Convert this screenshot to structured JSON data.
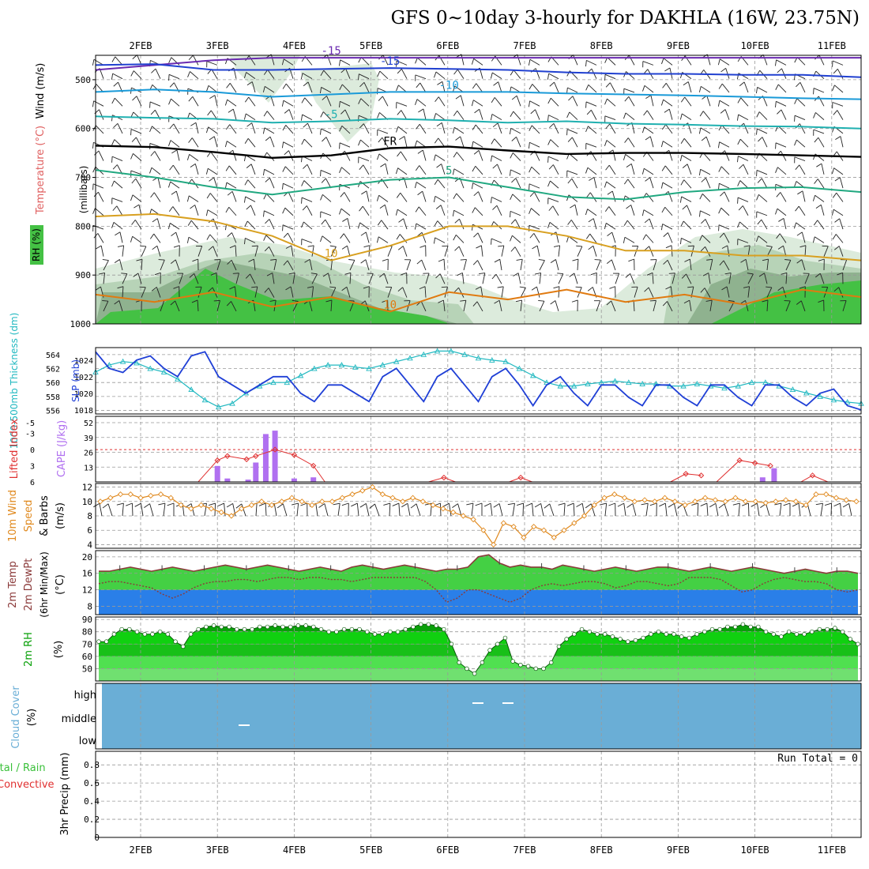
{
  "header": {
    "title": "GFS 0~10day 3-hourly for DAKHLA (16W, 23.75N)"
  },
  "dates": [
    "2FEB",
    "3FEB",
    "4FEB",
    "5FEB",
    "6FEB",
    "7FEB",
    "8FEB",
    "9FEB",
    "10FEB",
    "11FEB"
  ],
  "colors": {
    "wind_barb": "#222222",
    "rh_light": "#dcebdc",
    "rh_mid": "#b7d3b7",
    "rh_dark": "#8fb28f",
    "rh_green": "#44c144",
    "slp": "#1f3fd6",
    "thickness": "#20b8c0",
    "lifted": "#e03030",
    "cape": "#b070f0",
    "wind_speed": "#e08a20",
    "temp_fill": "#44d044",
    "dewpt_fill": "#2a7fe8",
    "temp_line": "#8b3a3a",
    "rh2m": "#08a008",
    "cloud": "#6aaed6"
  },
  "chart_data": [
    {
      "type": "heatmap",
      "name": "upper-air",
      "ylabel_parts": {
        "rh": "RH (%)",
        "temp": "Temperature (°C)",
        "wind": "Wind (m/s)",
        "units": "(millibars)"
      },
      "y_ticks": [
        500,
        600,
        700,
        800,
        900,
        1000
      ],
      "ylim": [
        450,
        1000
      ],
      "isotherms": [
        {
          "label": "-15",
          "color": "#6a2ab0",
          "values": [
            480,
            470,
            460,
            455,
            455,
            455,
            455,
            455,
            455,
            455,
            455,
            455,
            455,
            455
          ]
        },
        {
          "label": "-15",
          "color": "#2040d0",
          "values": [
            470,
            468,
            480,
            480,
            478,
            476,
            478,
            480,
            485,
            488,
            488,
            490,
            490,
            495
          ]
        },
        {
          "label": "-10",
          "color": "#1a9ad8",
          "values": [
            525,
            520,
            525,
            535,
            530,
            525,
            525,
            525,
            528,
            530,
            532,
            535,
            538,
            540
          ]
        },
        {
          "label": "-5",
          "color": "#20b0b0",
          "values": [
            575,
            578,
            580,
            588,
            585,
            580,
            583,
            588,
            585,
            590,
            592,
            595,
            596,
            600
          ]
        },
        {
          "label": "FR",
          "color": "#000000",
          "values": [
            635,
            638,
            648,
            660,
            655,
            640,
            637,
            645,
            652,
            650,
            650,
            652,
            655,
            658
          ]
        },
        {
          "label": "5",
          "color": "#20a880",
          "values": [
            685,
            700,
            720,
            735,
            720,
            705,
            700,
            720,
            740,
            745,
            730,
            722,
            720,
            730
          ]
        },
        {
          "label": "10",
          "color": "#d8a020",
          "values": [
            780,
            775,
            790,
            820,
            870,
            840,
            800,
            800,
            820,
            850,
            850,
            860,
            860,
            870
          ]
        },
        {
          "label": "10",
          "color": "#e07a10",
          "values": [
            940,
            955,
            935,
            965,
            945,
            975,
            935,
            950,
            930,
            955,
            940,
            960,
            930,
            945
          ]
        }
      ]
    },
    {
      "type": "line",
      "name": "thickness-slp",
      "ylabel_left": "1000-500mb Thickness (dm)",
      "ylabel_right": "SLP (mb)",
      "y_ticks_left": [
        556,
        558,
        560,
        562,
        564
      ],
      "y_ticks_right": [
        1018,
        1020,
        1022,
        1024
      ],
      "ylim_left": [
        555.5,
        565
      ],
      "ylim_right": [
        1017.5,
        1025.5
      ],
      "series": [
        {
          "key": "thickness",
          "values": [
            561.5,
            562.5,
            563,
            562.8,
            562,
            561.5,
            560.5,
            559,
            557.5,
            556.5,
            557,
            558.5,
            559.5,
            560,
            560,
            561,
            562,
            562.5,
            562.5,
            562.2,
            562,
            562.5,
            563,
            563.5,
            564,
            564.5,
            564.5,
            564,
            563.5,
            563.2,
            563,
            562,
            561,
            560,
            559.5,
            559.5,
            559.8,
            560,
            560.2,
            560,
            559.8,
            559.8,
            559.5,
            559.5,
            559.8,
            559.5,
            559.2,
            559.5,
            560,
            560,
            559.5,
            559,
            558.5,
            558,
            557.5,
            557.2,
            557
          ]
        },
        {
          "key": "slp",
          "values": [
            1025,
            1023,
            1022.5,
            1024,
            1024.5,
            1023,
            1022,
            1024.5,
            1025,
            1022,
            1021,
            1020,
            1021,
            1022,
            1022,
            1020,
            1019,
            1021,
            1021,
            1020,
            1019,
            1022,
            1023,
            1021,
            1019,
            1022,
            1023,
            1021,
            1019,
            1022,
            1023,
            1021,
            1018.5,
            1021,
            1022,
            1020,
            1018.5,
            1021,
            1021,
            1019.5,
            1018.5,
            1021,
            1021,
            1019.5,
            1018.5,
            1021,
            1021,
            1019.5,
            1018.5,
            1021,
            1021,
            1019.5,
            1018.5,
            1020,
            1020.5,
            1018.5,
            1018
          ]
        }
      ]
    },
    {
      "type": "bar",
      "name": "lifted-cape",
      "ylabel_left": "Lifted Index",
      "ylabel_right": "CAPE (J/kg)",
      "y_ticks_left": [
        "-5",
        "-3",
        "0",
        "3",
        "6"
      ],
      "y_ticks_right": [
        13,
        26,
        39,
        52
      ],
      "cape_values": [
        {
          "x": 1.0,
          "v": 14
        },
        {
          "x": 1.13,
          "v": 3
        },
        {
          "x": 1.4,
          "v": 2
        },
        {
          "x": 1.5,
          "v": 17
        },
        {
          "x": 1.63,
          "v": 42
        },
        {
          "x": 1.75,
          "v": 45
        },
        {
          "x": 2.0,
          "v": 3
        },
        {
          "x": 2.25,
          "v": 4
        },
        {
          "x": 8.1,
          "v": 4
        },
        {
          "x": 8.25,
          "v": 12
        }
      ],
      "lifted_values": [
        {
          "x": 0.75,
          "v": 6
        },
        {
          "x": 1.0,
          "v": 2
        },
        {
          "x": 1.13,
          "v": 1.2
        },
        {
          "x": 1.38,
          "v": 1.8
        },
        {
          "x": 1.5,
          "v": 1.2
        },
        {
          "x": 1.75,
          "v": 0
        },
        {
          "x": 2.0,
          "v": 1
        },
        {
          "x": 2.25,
          "v": 3
        },
        {
          "x": 2.4,
          "v": 6
        },
        {
          "x": 3.75,
          "v": 6
        },
        {
          "x": 3.95,
          "v": 5.2
        },
        {
          "x": 4.1,
          "v": 6
        },
        {
          "x": 4.8,
          "v": 6
        },
        {
          "x": 4.95,
          "v": 5.2
        },
        {
          "x": 5.1,
          "v": 6
        },
        {
          "x": 6.9,
          "v": 6
        },
        {
          "x": 7.1,
          "v": 4.5
        },
        {
          "x": 7.3,
          "v": 4.8
        },
        {
          "x": 7.5,
          "v": 6
        },
        {
          "x": 7.8,
          "v": 2
        },
        {
          "x": 8.0,
          "v": 2.5
        },
        {
          "x": 8.2,
          "v": 3
        },
        {
          "x": 8.3,
          "v": 6
        },
        {
          "x": 8.6,
          "v": 6
        },
        {
          "x": 8.75,
          "v": 4.8
        },
        {
          "x": 8.95,
          "v": 6
        }
      ]
    },
    {
      "type": "line",
      "name": "wind-speed",
      "ylabel": "10m Wind Speed & Barbs (m/s)",
      "y_ticks": [
        4,
        6,
        8,
        10,
        12
      ],
      "ylim": [
        3.5,
        12.5
      ],
      "values": [
        10,
        10.5,
        11,
        11,
        10.5,
        10.8,
        11,
        10.5,
        9.5,
        9,
        9.5,
        9,
        8.5,
        8,
        9,
        9.5,
        10,
        9.5,
        10,
        10.5,
        10,
        9.5,
        10,
        10,
        10.5,
        11,
        11.5,
        12,
        11,
        10.5,
        10,
        10.5,
        10,
        9.5,
        9,
        8.5,
        8,
        7.5,
        6,
        4,
        7,
        6.5,
        5,
        6.5,
        6,
        5,
        6,
        7,
        8,
        9.5,
        10.5,
        11,
        10.5,
        10,
        10.2,
        10,
        10.5,
        10,
        9.5,
        10,
        10.5,
        10.2,
        10,
        10.5,
        10,
        10,
        9.8,
        10,
        10.2,
        10,
        9.5,
        11,
        11,
        10.5,
        10.2,
        10
      ]
    },
    {
      "type": "area",
      "name": "temp-dewpt",
      "ylabel": "2m Temp 2m DewPt (6hr Min/Max) (°C)",
      "y_ticks": [
        8,
        12,
        16,
        20
      ],
      "ylim": [
        6,
        21.5
      ],
      "temp": [
        16.5,
        16.5,
        17,
        17.5,
        17,
        16.5,
        17,
        17.5,
        17,
        16.5,
        17,
        17.5,
        18,
        17.5,
        17,
        17.5,
        18,
        17.5,
        17,
        16.5,
        17,
        17.5,
        17,
        16.5,
        17.5,
        18,
        17.5,
        17,
        17.5,
        18,
        17.5,
        17,
        16.5,
        17,
        17,
        17.5,
        20,
        20.5,
        18.5,
        17.5,
        18,
        17.5,
        17.5,
        17,
        18,
        17.5,
        17,
        16.5,
        17,
        17.5,
        17,
        16.5,
        17,
        17.5,
        17.5,
        17,
        16.5,
        17,
        17.5,
        17,
        16.5,
        17,
        17.5,
        17,
        16.5,
        16,
        16.5,
        17,
        16.5,
        16,
        16.5,
        16.5,
        16
      ],
      "dewpt": [
        13.5,
        14,
        14,
        13.5,
        13,
        12.5,
        11,
        10,
        11,
        12.5,
        13.5,
        14,
        14,
        14.5,
        14.5,
        14,
        14.5,
        15,
        15,
        14.5,
        15,
        15,
        14.5,
        14.5,
        14,
        14.5,
        15,
        15,
        15,
        15,
        15,
        14,
        12,
        9,
        10,
        12,
        12,
        11,
        10,
        9,
        10,
        12,
        13,
        13.5,
        13,
        13.5,
        14,
        14,
        13.5,
        12.5,
        13,
        14,
        14,
        13.5,
        13,
        13.5,
        15,
        15,
        15,
        14.5,
        13,
        11.5,
        12,
        13.5,
        14.5,
        15,
        14.5,
        14,
        14,
        13.5,
        12,
        11.5,
        12
      ]
    },
    {
      "type": "area",
      "name": "rh-2m",
      "ylabel": "2m RH (%)",
      "y_ticks": [
        50,
        60,
        70,
        80,
        90
      ],
      "ylim": [
        40,
        92
      ],
      "values": [
        72,
        72,
        78,
        82,
        82,
        80,
        78,
        78,
        80,
        78,
        72,
        68,
        78,
        82,
        84,
        85,
        84,
        84,
        82,
        82,
        82,
        84,
        84,
        85,
        84,
        84,
        85,
        85,
        84,
        82,
        80,
        80,
        82,
        82,
        82,
        80,
        78,
        78,
        80,
        80,
        82,
        84,
        86,
        86,
        85,
        82,
        70,
        55,
        50,
        46,
        55,
        65,
        70,
        75,
        56,
        53,
        52,
        50,
        50,
        55,
        68,
        74,
        78,
        82,
        80,
        78,
        78,
        76,
        74,
        72,
        73,
        75,
        78,
        80,
        78,
        78,
        76,
        75,
        78,
        80,
        82,
        82,
        84,
        84,
        86,
        84,
        84,
        80,
        78,
        76,
        80,
        78,
        78,
        80,
        82,
        82,
        83,
        80,
        74,
        70
      ]
    },
    {
      "type": "heatmap",
      "name": "cloud-cover",
      "ylabel": "Cloud Cover (%)",
      "levels": [
        "high",
        "middle",
        "low"
      ]
    },
    {
      "type": "bar",
      "name": "precip",
      "ylabel_left": "Total / Rain",
      "ylabel_left2": "Convective",
      "ylabel_right": "3hr Precip (mm)",
      "y_ticks": [
        "0",
        "0.2",
        "0.4",
        "0.6",
        "0.8"
      ],
      "run_total_label": "Run Total = 0",
      "values": []
    }
  ]
}
